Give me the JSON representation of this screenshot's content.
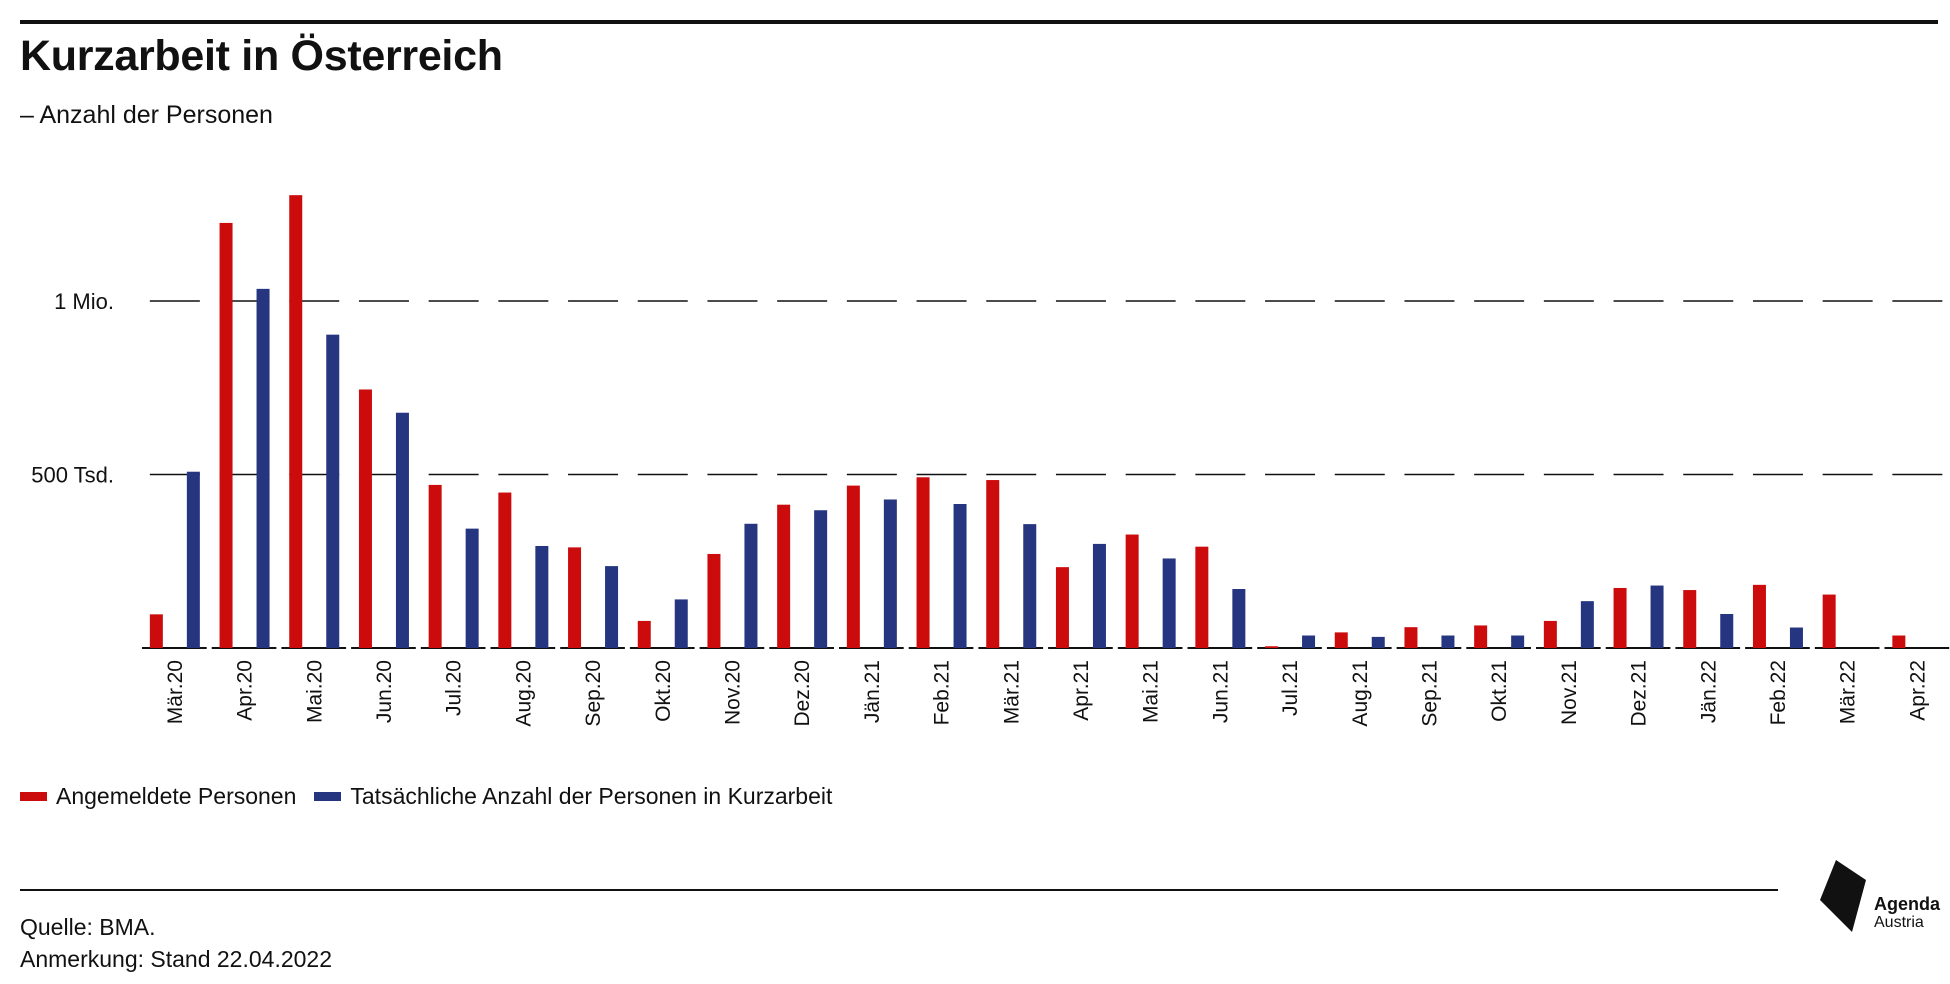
{
  "header": {
    "title": "Kurzarbeit in Österreich",
    "subtitle": "– Anzahl der Personen"
  },
  "legend": {
    "registered": "Angemeldete Personen",
    "actual": "Tatsächliche Anzahl der Personen in Kurzarbeit"
  },
  "footer": {
    "source": "Quelle: BMA.",
    "note": "Anmerkung: Stand 22.04.2022"
  },
  "logo": {
    "name": "Agenda",
    "sub": "Austria"
  },
  "colors": {
    "registered": "#cc0c0c",
    "actual": "#253580",
    "grid": "#111111"
  },
  "chart_data": {
    "type": "bar",
    "categories": [
      "Mär.20",
      "Apr.20",
      "Mai.20",
      "Jun.20",
      "Jul.20",
      "Aug.20",
      "Sep.20",
      "Okt.20",
      "Nov.20",
      "Dez.20",
      "Jän.21",
      "Feb.21",
      "Mär.21",
      "Apr.21",
      "Mai.21",
      "Jun.21",
      "Jul.21",
      "Aug.21",
      "Sep.21",
      "Okt.21",
      "Nov.21",
      "Dez.21",
      "Jän.22",
      "Feb.22",
      "Mär.22",
      "Apr.22"
    ],
    "series": [
      {
        "name": "Angemeldete Personen",
        "values": [
          97000,
          1225000,
          1305000,
          745000,
          470000,
          448000,
          290000,
          78000,
          271000,
          413000,
          468000,
          492000,
          484000,
          233000,
          327000,
          292000,
          5000,
          45000,
          60000,
          65000,
          78000,
          173000,
          167000,
          182000,
          154000,
          36000
        ]
      },
      {
        "name": "Tatsächliche Anzahl der Personen in Kurzarbeit",
        "values": [
          508000,
          1035000,
          903000,
          678000,
          344000,
          294000,
          236000,
          140000,
          358000,
          397000,
          428000,
          415000,
          357000,
          300000,
          258000,
          170000,
          36000,
          32000,
          36000,
          36000,
          135000,
          180000,
          98000,
          59000,
          0,
          0
        ]
      }
    ],
    "ytick_labels": [
      "500 Tsd.",
      "1 Mio."
    ],
    "ytick_values": [
      500000,
      1000000
    ],
    "ylim": [
      0,
      1400000
    ],
    "grid": "dashed horizontal",
    "legend_position": "bottom-left"
  }
}
